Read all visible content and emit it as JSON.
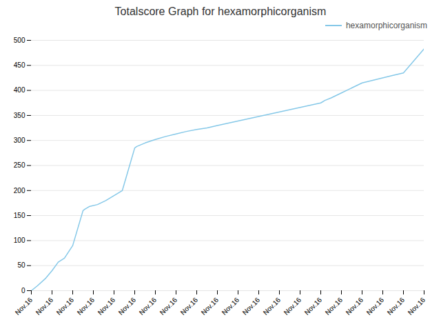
{
  "chart_data": {
    "type": "line",
    "title": "Totalscore Graph for hexamorphicorganism",
    "x": [
      0,
      0.3,
      0.7,
      1.0,
      1.3,
      1.6,
      2.0,
      2.5,
      2.6,
      2.8,
      3.2,
      3.6,
      4.0,
      4.4,
      5.0,
      5.1,
      5.5,
      6.0,
      6.5,
      7.0,
      7.5,
      8.0,
      8.5,
      9.0,
      14.0,
      14.2,
      14.5,
      15.0,
      15.5,
      16.0,
      17.5,
      18.0,
      19.0
    ],
    "series": [
      {
        "name": "hexamorphicorganism",
        "color": "#85c8e8",
        "values": [
          0,
          10,
          25,
          40,
          57,
          65,
          90,
          160,
          163,
          168,
          172,
          180,
          190,
          200,
          285,
          288,
          295,
          302,
          308,
          313,
          318,
          322,
          325,
          330,
          375,
          380,
          385,
          395,
          405,
          415,
          430,
          435,
          483
        ]
      }
    ],
    "xlim": [
      0,
      19
    ],
    "xticks": [
      {
        "value": 0,
        "label": "Nov.16"
      },
      {
        "value": 1,
        "label": "Nov.16"
      },
      {
        "value": 2,
        "label": "Nov.16"
      },
      {
        "value": 3,
        "label": "Nov.16"
      },
      {
        "value": 4,
        "label": "Nov.16"
      },
      {
        "value": 5,
        "label": "Nov.16"
      },
      {
        "value": 6,
        "label": "Nov.16"
      },
      {
        "value": 7,
        "label": "Nov.16"
      },
      {
        "value": 8,
        "label": "Nov.16"
      },
      {
        "value": 9,
        "label": "Nov.16"
      },
      {
        "value": 10,
        "label": "Nov.16"
      },
      {
        "value": 11,
        "label": "Nov.16"
      },
      {
        "value": 12,
        "label": "Nov.16"
      },
      {
        "value": 13,
        "label": "Nov.16"
      },
      {
        "value": 14,
        "label": "Nov.16"
      },
      {
        "value": 15,
        "label": "Nov.16"
      },
      {
        "value": 16,
        "label": "Nov.16"
      },
      {
        "value": 17,
        "label": "Nov.16"
      },
      {
        "value": 18,
        "label": "Nov.16"
      },
      {
        "value": 19,
        "label": "Nov.16"
      }
    ],
    "ylim": [
      0,
      500
    ],
    "yticks": [
      0,
      50,
      100,
      150,
      200,
      250,
      300,
      350,
      400,
      450,
      500
    ],
    "grid": "y",
    "legend": "upper right"
  }
}
